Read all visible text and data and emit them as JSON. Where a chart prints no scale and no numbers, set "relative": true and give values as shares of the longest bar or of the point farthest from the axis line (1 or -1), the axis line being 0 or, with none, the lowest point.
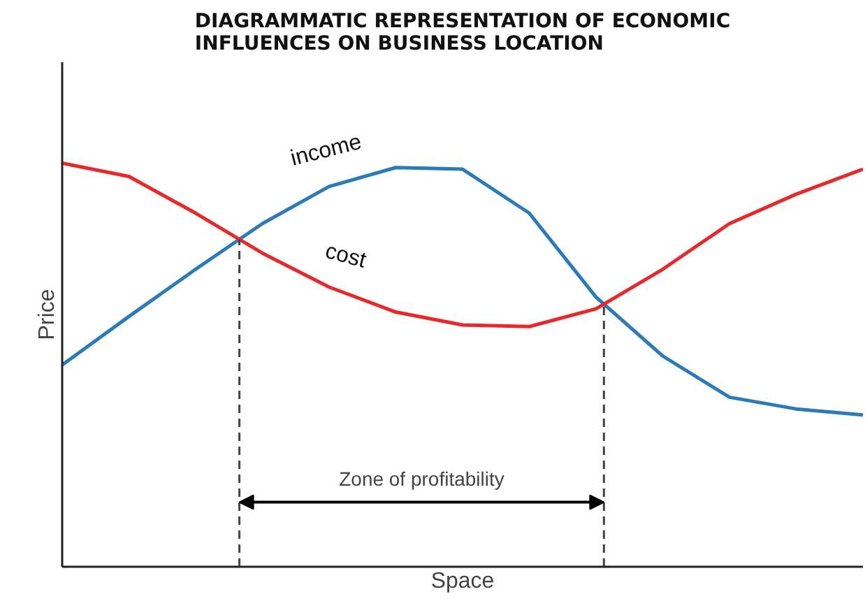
{
  "chart_data": {
    "type": "line",
    "title": "DIAGRAMMATIC REPRESENTATION OF ECONOMIC INFLUENCES ON BUSINESS LOCATION",
    "xlabel": "Space",
    "ylabel": "Price",
    "relative": true,
    "legend": false,
    "categories": [
      null,
      null,
      null,
      null,
      null,
      null,
      null,
      null,
      null,
      null,
      null,
      null,
      null
    ],
    "series": [
      {
        "name": "income",
        "color": "#2b7bba",
        "values": [
          0.5,
          0.62,
          0.737,
          0.85,
          0.942,
          0.989,
          0.985,
          0.876,
          0.668,
          0.522,
          0.42,
          0.391,
          0.376
        ]
      },
      {
        "name": "cost",
        "color": "#e8282b",
        "values": [
          1,
          0.967,
          0.876,
          0.777,
          0.693,
          0.631,
          0.599,
          0.595,
          0.639,
          0.737,
          0.85,
          0.923,
          0.985
        ]
      }
    ],
    "annotations": [
      "Zone of profitability"
    ]
  }
}
